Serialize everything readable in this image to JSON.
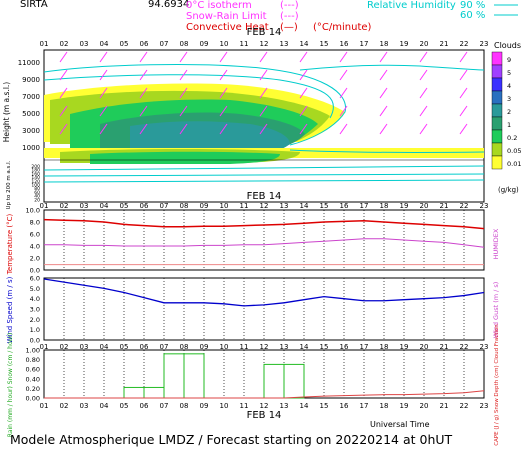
{
  "header": {
    "station": "SIRTA",
    "coords": "94.6934",
    "legend": [
      {
        "label": "0°C isotherm",
        "sample": "(---)",
        "color": "#ff33ff"
      },
      {
        "label": "Snow-Rain Limit",
        "sample": "(---)",
        "color": "#ff33ff"
      },
      {
        "label": "Convective Heat",
        "sample": "(—)",
        "unit": "(°C/minute)",
        "color": "#dd0000"
      }
    ],
    "humidity": {
      "label": "Relative Humidity",
      "v1": "90 %",
      "v2": "60 %",
      "color": "#00cccc"
    }
  },
  "hours": [
    "01",
    "02",
    "03",
    "04",
    "05",
    "06",
    "07",
    "08",
    "09",
    "10",
    "11",
    "12",
    "13",
    "14",
    "15",
    "16",
    "17",
    "18",
    "19",
    "20",
    "21",
    "22",
    "23"
  ],
  "date_label": "FEB 14",
  "colorbar": {
    "title": "Clouds",
    "unit": "(g/kg)",
    "labels": [
      "9",
      "5",
      "4",
      "3",
      "2",
      "1",
      "0.2",
      "0.05",
      "0.01"
    ],
    "colors": [
      "#ff33ff",
      "#a040ff",
      "#3a30ff",
      "#2a70c0",
      "#2a9a9a",
      "#2aa070",
      "#1fcc5a",
      "#a8d820",
      "#ffff33"
    ]
  },
  "panel1": {
    "ylabel": "Height  (m a.s.l.)",
    "ylabel2": "Up to 200 m a.s.l.",
    "yticks": [
      "11000",
      "9000",
      "7000",
      "5000",
      "3000",
      "1000"
    ],
    "yticks_low": [
      "200",
      "180",
      "160",
      "140",
      "120",
      "100",
      "80",
      "60",
      "40",
      "20"
    ]
  },
  "panel2": {
    "ylabel": "Temperature (°C)",
    "ylabel_right": "HUMIDEX",
    "yticks": [
      "10.0",
      "8.0",
      "6.0",
      "4.0",
      "2.0",
      "0.0"
    ],
    "ylim": [
      0,
      10
    ]
  },
  "panel3": {
    "ylabel": "Wind Speed (m / s)",
    "ylabel_right": "Wind Gust (m / s)",
    "yticks": [
      "6.0",
      "5.0",
      "4.0",
      "3.0",
      "2.0",
      "1.0",
      "0.0"
    ],
    "ylim": [
      0,
      6
    ]
  },
  "panel4": {
    "ylabel": "Rain (mm / hour) Snow (cm / hour)",
    "ylabel_right": "CAPE (J / g) Snow Depth (cm) Cloud Fraction",
    "yticks": [
      "1.00",
      "0.80",
      "0.60",
      "0.40",
      "0.20",
      "0.00"
    ],
    "ylim": [
      0,
      1
    ]
  },
  "footer": {
    "text": "Modele Atmospherique LMDZ / Forecast starting on 20220214 at 0hUT",
    "time_label": "Universal Time"
  },
  "chart_data": [
    {
      "type": "line",
      "title": "Temperature",
      "x": [
        1,
        2,
        3,
        4,
        5,
        6,
        7,
        8,
        9,
        10,
        11,
        12,
        13,
        14,
        15,
        16,
        17,
        18,
        19,
        20,
        21,
        22,
        23
      ],
      "series": [
        {
          "name": "Temperature",
          "color": "#dd0000",
          "values": [
            8.4,
            8.3,
            8.2,
            8.0,
            7.6,
            7.4,
            7.2,
            7.2,
            7.3,
            7.3,
            7.4,
            7.5,
            7.6,
            7.8,
            8.0,
            8.1,
            8.2,
            8.0,
            7.8,
            7.6,
            7.4,
            7.2,
            6.9
          ]
        },
        {
          "name": "HUMIDEX",
          "color": "#cc44cc",
          "values": [
            4.2,
            4.2,
            4.1,
            4.1,
            4.0,
            4.0,
            4.0,
            4.0,
            4.1,
            4.1,
            4.2,
            4.2,
            4.4,
            4.6,
            4.8,
            5.0,
            5.2,
            5.2,
            5.0,
            4.8,
            4.6,
            4.2,
            3.8
          ]
        },
        {
          "name": "",
          "color": "#ee8888",
          "values": [
            0.9,
            0.9,
            0.9,
            0.9,
            0.9,
            0.9,
            0.9,
            0.9,
            0.9,
            0.9,
            0.9,
            0.9,
            0.9,
            0.9,
            0.9,
            0.9,
            0.9,
            0.9,
            0.9,
            0.9,
            0.9,
            0.9,
            0.9
          ]
        }
      ],
      "ylim": [
        0,
        10
      ]
    },
    {
      "type": "line",
      "title": "Wind Speed",
      "x": [
        1,
        2,
        3,
        4,
        5,
        6,
        7,
        8,
        9,
        10,
        11,
        12,
        13,
        14,
        15,
        16,
        17,
        18,
        19,
        20,
        21,
        22,
        23
      ],
      "series": [
        {
          "name": "Wind Speed",
          "color": "#0000cc",
          "values": [
            5.9,
            5.6,
            5.3,
            5.0,
            4.6,
            4.1,
            3.6,
            3.6,
            3.6,
            3.5,
            3.3,
            3.4,
            3.6,
            3.9,
            4.2,
            4.0,
            3.8,
            3.8,
            3.9,
            4.0,
            4.1,
            4.3,
            4.6
          ]
        }
      ],
      "ylim": [
        0,
        6
      ]
    },
    {
      "type": "bar",
      "title": "Rain",
      "x": [
        1,
        2,
        3,
        4,
        5,
        6,
        7,
        8,
        9,
        10,
        11,
        12,
        13,
        14,
        15,
        16,
        17,
        18,
        19,
        20,
        21,
        22,
        23
      ],
      "series": [
        {
          "name": "Rain",
          "color": "#22bb22",
          "values": [
            0,
            0,
            0,
            0,
            0.22,
            0.22,
            0.92,
            0.92,
            0,
            0,
            0,
            0.7,
            0.7,
            0,
            0,
            0,
            0,
            0,
            0,
            0,
            0,
            0,
            0
          ]
        },
        {
          "name": "CAPE",
          "color": "#dd4444",
          "values": [
            0,
            0,
            0,
            0,
            0,
            0,
            0,
            0,
            0,
            0,
            0,
            0,
            0,
            0.02,
            0.04,
            0.05,
            0.06,
            0.07,
            0.07,
            0.08,
            0.09,
            0.11,
            0.15
          ]
        }
      ],
      "ylim": [
        0,
        1
      ]
    }
  ]
}
